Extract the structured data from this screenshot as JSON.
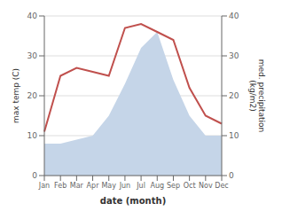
{
  "chart_data": {
    "type": "line",
    "categories": [
      "Jan",
      "Feb",
      "Mar",
      "Apr",
      "May",
      "Jun",
      "Jul",
      "Aug",
      "Sep",
      "Oct",
      "Nov",
      "Dec"
    ],
    "series": [
      {
        "type": "area",
        "color": "#c5d5e8",
        "axis": "y2",
        "values": [
          8,
          8,
          9,
          10,
          15,
          23,
          32,
          36,
          24,
          15,
          10,
          10
        ]
      },
      {
        "type": "line",
        "color": "#c0504d",
        "values": [
          11,
          25,
          27,
          26,
          25,
          37,
          38,
          36,
          34,
          22,
          15,
          13
        ]
      }
    ],
    "xlabel": "date (month)",
    "ylabel": "max temp (C)",
    "y2label": "med. precipitation\n(kg/m2)",
    "ylim": [
      0,
      40
    ],
    "yticks": [
      0,
      10,
      20,
      30,
      40
    ],
    "y2lim": [
      0,
      40
    ],
    "y2ticks": [
      0,
      10,
      20,
      30,
      40
    ],
    "grid": true
  }
}
